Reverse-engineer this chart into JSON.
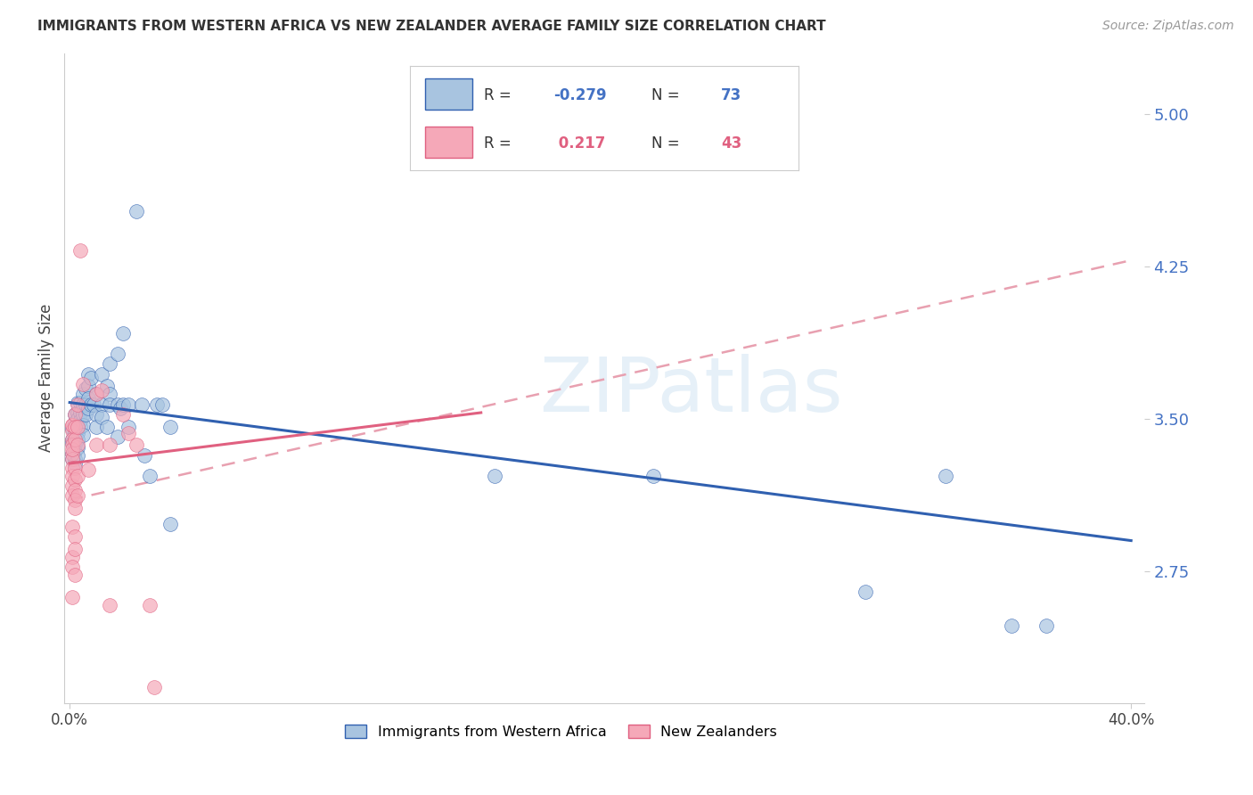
{
  "title": "IMMIGRANTS FROM WESTERN AFRICA VS NEW ZEALANDER AVERAGE FAMILY SIZE CORRELATION CHART",
  "source": "Source: ZipAtlas.com",
  "ylabel": "Average Family Size",
  "right_yticks": [
    2.75,
    3.5,
    4.25,
    5.0
  ],
  "watermark": "ZIPatlas",
  "legend_series": [
    {
      "label": "Immigrants from Western Africa",
      "color": "#a8c4e0",
      "edgecolor": "#5b8db8"
    },
    {
      "label": "New Zealanders",
      "color": "#f5a8b8",
      "edgecolor": "#e06080"
    }
  ],
  "blue_scatter": [
    [
      0.001,
      3.45
    ],
    [
      0.001,
      3.4
    ],
    [
      0.001,
      3.38
    ],
    [
      0.001,
      3.33
    ],
    [
      0.001,
      3.3
    ],
    [
      0.002,
      3.52
    ],
    [
      0.002,
      3.48
    ],
    [
      0.002,
      3.45
    ],
    [
      0.002,
      3.43
    ],
    [
      0.002,
      3.4
    ],
    [
      0.002,
      3.37
    ],
    [
      0.002,
      3.34
    ],
    [
      0.002,
      3.3
    ],
    [
      0.002,
      3.28
    ],
    [
      0.003,
      3.58
    ],
    [
      0.003,
      3.53
    ],
    [
      0.003,
      3.5
    ],
    [
      0.003,
      3.47
    ],
    [
      0.003,
      3.43
    ],
    [
      0.003,
      3.4
    ],
    [
      0.003,
      3.36
    ],
    [
      0.003,
      3.32
    ],
    [
      0.004,
      3.58
    ],
    [
      0.004,
      3.53
    ],
    [
      0.004,
      3.49
    ],
    [
      0.004,
      3.46
    ],
    [
      0.005,
      3.62
    ],
    [
      0.005,
      3.57
    ],
    [
      0.005,
      3.52
    ],
    [
      0.005,
      3.47
    ],
    [
      0.005,
      3.42
    ],
    [
      0.006,
      3.65
    ],
    [
      0.006,
      3.57
    ],
    [
      0.006,
      3.52
    ],
    [
      0.007,
      3.72
    ],
    [
      0.007,
      3.66
    ],
    [
      0.007,
      3.6
    ],
    [
      0.007,
      3.55
    ],
    [
      0.008,
      3.7
    ],
    [
      0.008,
      3.57
    ],
    [
      0.009,
      3.57
    ],
    [
      0.01,
      3.62
    ],
    [
      0.01,
      3.52
    ],
    [
      0.01,
      3.46
    ],
    [
      0.012,
      3.72
    ],
    [
      0.012,
      3.57
    ],
    [
      0.012,
      3.51
    ],
    [
      0.014,
      3.66
    ],
    [
      0.014,
      3.46
    ],
    [
      0.015,
      3.77
    ],
    [
      0.015,
      3.62
    ],
    [
      0.015,
      3.57
    ],
    [
      0.018,
      3.82
    ],
    [
      0.018,
      3.57
    ],
    [
      0.018,
      3.41
    ],
    [
      0.019,
      3.55
    ],
    [
      0.02,
      3.92
    ],
    [
      0.02,
      3.57
    ],
    [
      0.022,
      3.57
    ],
    [
      0.022,
      3.46
    ],
    [
      0.025,
      4.52
    ],
    [
      0.027,
      3.57
    ],
    [
      0.028,
      3.32
    ],
    [
      0.03,
      3.22
    ],
    [
      0.033,
      3.57
    ],
    [
      0.035,
      3.57
    ],
    [
      0.038,
      3.46
    ],
    [
      0.038,
      2.98
    ],
    [
      0.16,
      3.22
    ],
    [
      0.22,
      3.22
    ],
    [
      0.3,
      2.65
    ],
    [
      0.33,
      3.22
    ],
    [
      0.355,
      2.48
    ],
    [
      0.368,
      2.48
    ]
  ],
  "pink_scatter": [
    [
      0.001,
      3.47
    ],
    [
      0.001,
      3.44
    ],
    [
      0.001,
      3.4
    ],
    [
      0.001,
      3.37
    ],
    [
      0.001,
      3.33
    ],
    [
      0.001,
      3.3
    ],
    [
      0.001,
      3.26
    ],
    [
      0.001,
      3.22
    ],
    [
      0.001,
      3.17
    ],
    [
      0.001,
      3.12
    ],
    [
      0.001,
      2.97
    ],
    [
      0.001,
      2.82
    ],
    [
      0.001,
      2.77
    ],
    [
      0.001,
      2.62
    ],
    [
      0.001,
      3.47
    ],
    [
      0.001,
      3.35
    ],
    [
      0.002,
      3.52
    ],
    [
      0.002,
      3.46
    ],
    [
      0.002,
      3.4
    ],
    [
      0.002,
      3.26
    ],
    [
      0.002,
      3.2
    ],
    [
      0.002,
      3.15
    ],
    [
      0.002,
      3.1
    ],
    [
      0.002,
      3.06
    ],
    [
      0.002,
      2.92
    ],
    [
      0.002,
      2.86
    ],
    [
      0.002,
      2.73
    ],
    [
      0.003,
      3.57
    ],
    [
      0.003,
      3.46
    ],
    [
      0.003,
      3.37
    ],
    [
      0.003,
      3.22
    ],
    [
      0.003,
      3.12
    ],
    [
      0.004,
      4.33
    ],
    [
      0.005,
      3.67
    ],
    [
      0.007,
      3.25
    ],
    [
      0.01,
      3.62
    ],
    [
      0.01,
      3.37
    ],
    [
      0.012,
      3.64
    ],
    [
      0.015,
      3.37
    ],
    [
      0.015,
      2.58
    ],
    [
      0.02,
      3.52
    ],
    [
      0.022,
      3.43
    ],
    [
      0.025,
      3.37
    ],
    [
      0.03,
      2.58
    ],
    [
      0.032,
      2.18
    ]
  ],
  "blue_line": {
    "x": [
      0.0,
      0.4
    ],
    "y": [
      3.58,
      2.9
    ]
  },
  "pink_line": {
    "x": [
      0.0,
      0.155
    ],
    "y": [
      3.28,
      3.53
    ]
  },
  "pink_dashed": {
    "x": [
      0.0,
      0.4
    ],
    "y": [
      3.1,
      4.28
    ]
  },
  "xlim": [
    -0.002,
    0.405
  ],
  "ylim": [
    2.1,
    5.3
  ],
  "background_color": "#ffffff",
  "grid_color": "#dddddd",
  "blue_scatter_color": "#a8c4e0",
  "pink_scatter_color": "#f5a8b8",
  "blue_line_color": "#3060b0",
  "pink_line_color": "#e06080",
  "pink_dash_color": "#e8a0b0"
}
